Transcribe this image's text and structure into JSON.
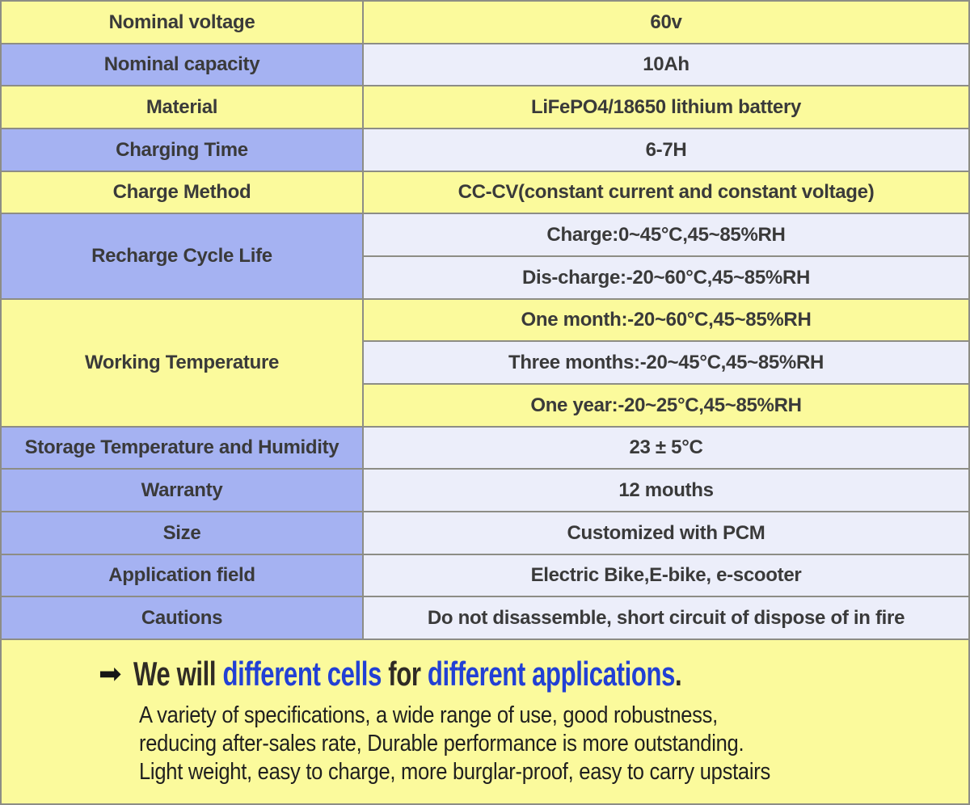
{
  "colors": {
    "row_yellow": "#fbfa9c",
    "row_blue": "#a5b2f2",
    "row_lavender": "#eceefa",
    "gridline": "#8d8d85",
    "heading_blue": "#2240d4",
    "heading_dark": "#2f2b25"
  },
  "table": {
    "rows": [
      {
        "label": "Nominal voltage",
        "value": "60v"
      },
      {
        "label": "Nominal capacity",
        "value": "10Ah"
      },
      {
        "label": "Material",
        "value": "LiFePO4/18650 lithium battery"
      },
      {
        "label": "Charging Time",
        "value": "6-7H"
      },
      {
        "label": "Charge Method",
        "value": "CC-CV(constant current and constant voltage)"
      },
      {
        "label": "Recharge Cycle Life",
        "values": [
          "Charge:0~45°C,45~85%RH",
          "Dis-charge:-20~60°C,45~85%RH"
        ]
      },
      {
        "label": "Working Temperature",
        "values": [
          "One month:-20~60°C,45~85%RH",
          "Three months:-20~45°C,45~85%RH",
          "One year:-20~25°C,45~85%RH"
        ]
      },
      {
        "label": "Storage Temperature and Humidity",
        "value": "23 ± 5°C"
      },
      {
        "label": "Warranty",
        "value": "12 mouths"
      },
      {
        "label": "Size",
        "value": "Customized with PCM"
      },
      {
        "label": "Application field",
        "value": "Electric Bike,E-bike, e-scooter"
      },
      {
        "label": "Cautions",
        "value": "Do not disassemble, short circuit of dispose of in fire"
      }
    ]
  },
  "footer": {
    "arrow": "➡",
    "heading": [
      {
        "text": "We will "
      },
      {
        "text": "different cells"
      },
      {
        "text": " for "
      },
      {
        "text": "different applications"
      },
      {
        "text": "."
      }
    ],
    "lines": [
      "A variety of specifications, a wide range of use, good robustness,",
      "reducing after-sales rate, Durable performance is more outstanding.",
      "Light weight, easy to charge, more burglar-proof, easy to carry upstairs"
    ]
  }
}
